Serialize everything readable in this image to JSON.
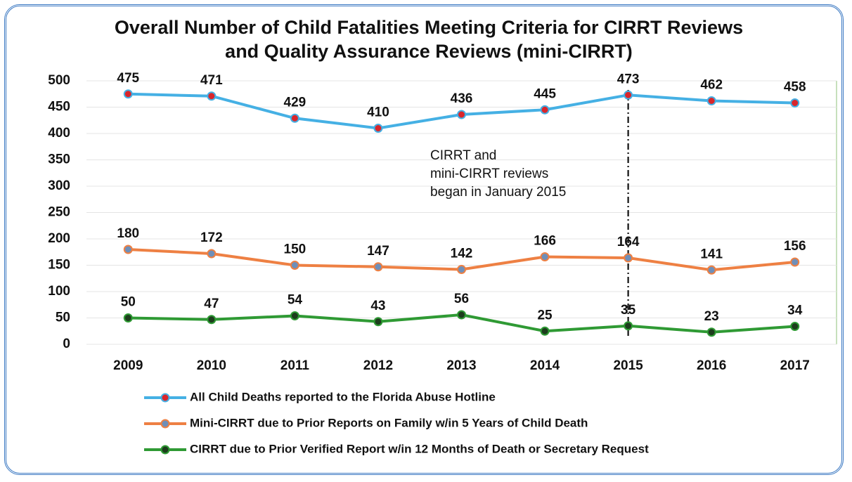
{
  "chart_data": {
    "type": "line",
    "title": "Overall Number of Child Fatalities Meeting Criteria for CIRRT Reviews and Quality Assurance Reviews (mini-CIRRT)",
    "annotation": [
      "CIRRT and",
      "mini-CIRRT reviews",
      "began in January 2015"
    ],
    "categories": [
      "2009",
      "2010",
      "2011",
      "2012",
      "2013",
      "2014",
      "2015",
      "2016",
      "2017"
    ],
    "series": [
      {
        "name": "All Child Deaths reported to the Florida Abuse Hotline",
        "color": "#45b0e4",
        "marker_color": "#d9262c",
        "values": [
          475,
          471,
          429,
          410,
          436,
          445,
          473,
          462,
          458
        ]
      },
      {
        "name": "Mini-CIRRT due to Prior Reports on Family w/in 5 Years of Child Death",
        "color": "#ee8043",
        "marker_color": "#6f8fb8",
        "values": [
          180,
          172,
          150,
          147,
          142,
          166,
          164,
          141,
          156
        ]
      },
      {
        "name": "CIRRT due to Prior Verified Report w/in 12 Months of Death or Secretary Request",
        "color": "#2f9a34",
        "marker_color": "#1d3d1d",
        "values": [
          50,
          47,
          54,
          43,
          56,
          25,
          35,
          23,
          34
        ]
      }
    ],
    "ylim": [
      0,
      500
    ],
    "yticks": [
      0,
      50,
      100,
      150,
      200,
      250,
      300,
      350,
      400,
      450,
      500
    ],
    "grid": true
  }
}
